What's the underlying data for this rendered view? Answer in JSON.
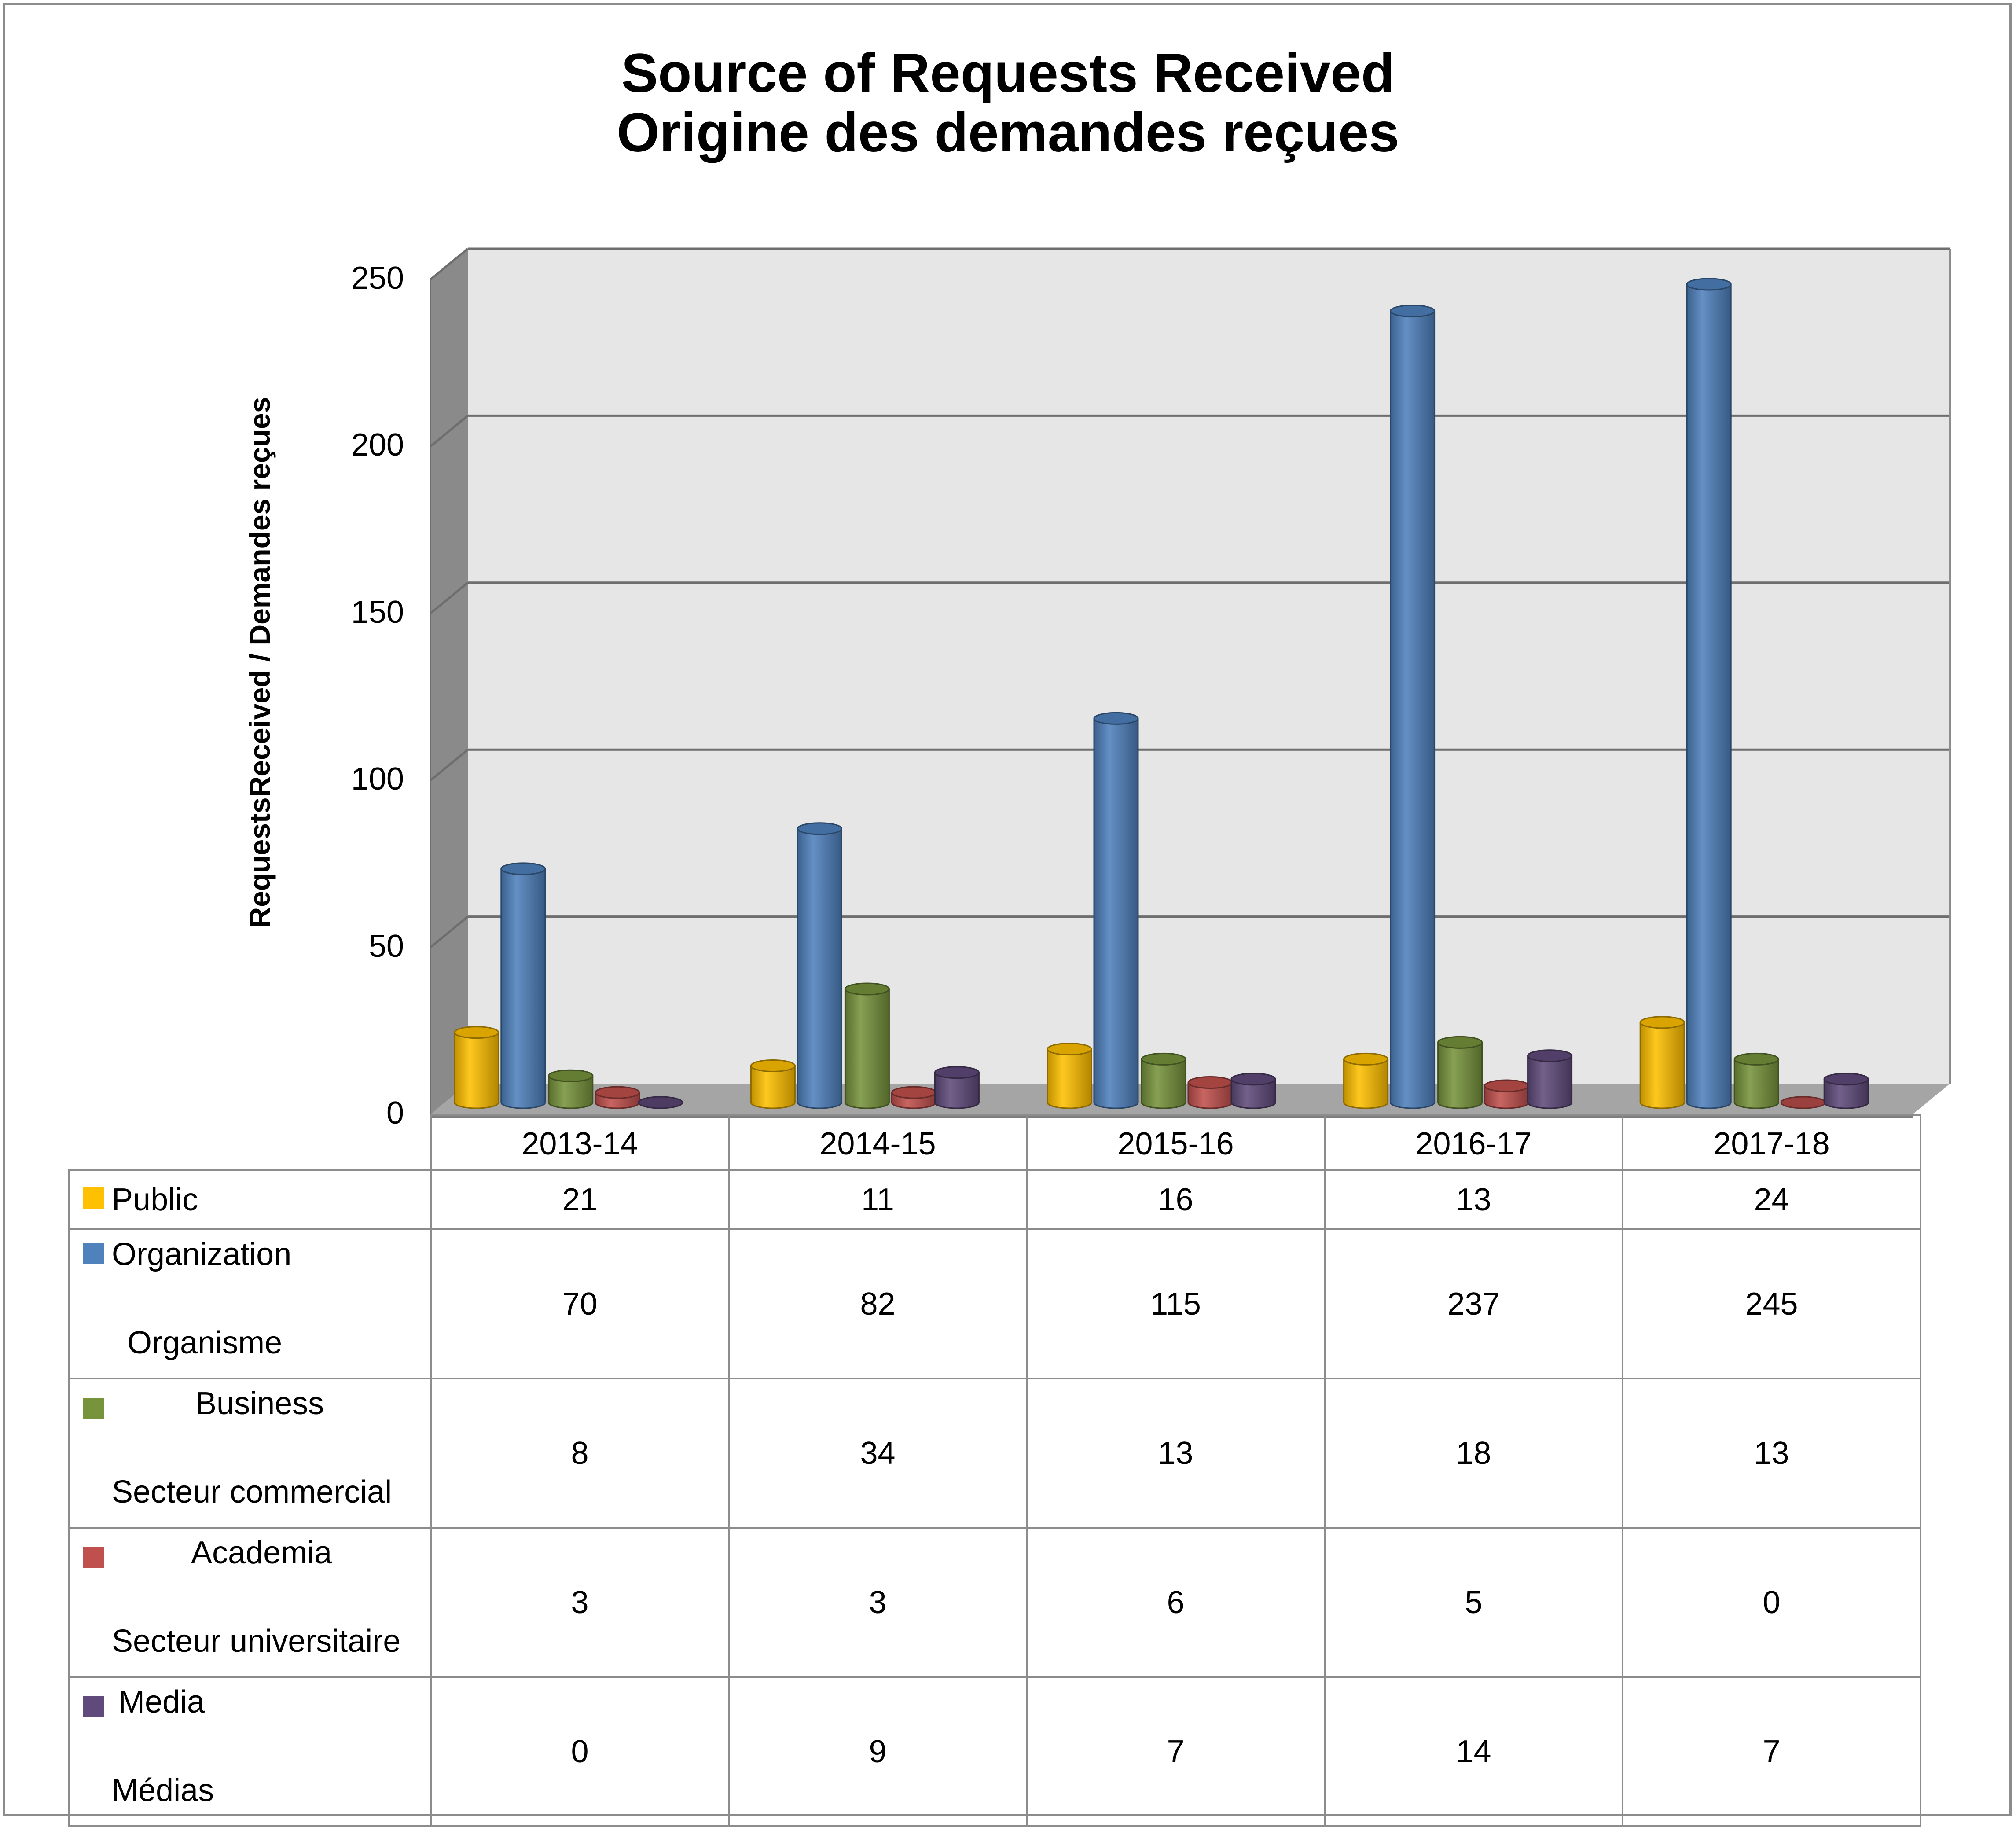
{
  "chart_data": {
    "type": "bar",
    "title": "Source of Requests Received",
    "subtitle": "Origine des demandes reçues",
    "ylabel": "RequestsReceived / Demandes reçues",
    "xlabel": "",
    "ylim": [
      0,
      250
    ],
    "yticks": [
      "0",
      "50",
      "100",
      "150",
      "200",
      "250"
    ],
    "categories": [
      "2013-14",
      "2014-15",
      "2015-16",
      "2016-17",
      "2017-18"
    ],
    "grid": true,
    "legend_placement": "data table below chart",
    "series": [
      {
        "name": "Public",
        "name_fr": "",
        "values": [
          21,
          11,
          16,
          13,
          24
        ],
        "color": "#FFC000"
      },
      {
        "name": "Organization",
        "name_fr": "Organisme",
        "values": [
          70,
          82,
          115,
          237,
          245
        ],
        "color": "#4F81BD"
      },
      {
        "name": "Business",
        "name_fr": "Secteur commercial",
        "values": [
          8,
          34,
          13,
          18,
          13
        ],
        "color": "#77933C"
      },
      {
        "name": "Academia",
        "name_fr": "Secteur universitaire",
        "values": [
          3,
          3,
          6,
          5,
          0
        ],
        "color": "#C0504D"
      },
      {
        "name": "Media",
        "name_fr": "Médias",
        "values": [
          0,
          9,
          7,
          14,
          7
        ],
        "color": "#604A7B"
      }
    ]
  }
}
